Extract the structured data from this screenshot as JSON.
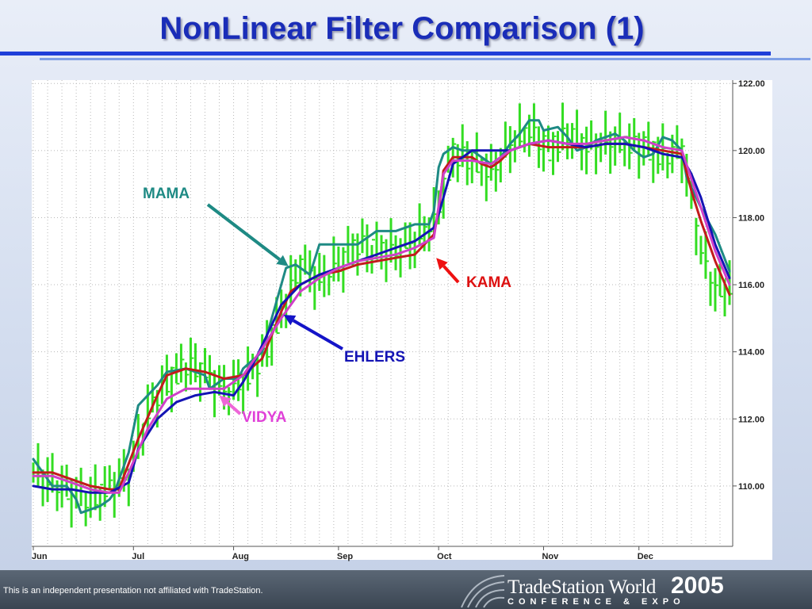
{
  "slide": {
    "title": "NonLinear Filter Comparison (1)",
    "disclaimer": "This is an independent presentation not affiliated with TradeStation.",
    "logo_name": "TradeStation World",
    "logo_year": "2005",
    "logo_subtitle": "CONFERENCE & EXPO",
    "accent_color": "#1a2db8"
  },
  "chart_data": {
    "type": "line",
    "x_unit": "trading days (Jun–Dec)",
    "ylim": [
      108.2,
      122.1
    ],
    "yticks": [
      110,
      112,
      114,
      116,
      118,
      120,
      122
    ],
    "ytick_labels": [
      "110.00",
      "112.00",
      "114.00",
      "116.00",
      "118.00",
      "120.00",
      "122.00"
    ],
    "months": [
      {
        "label": "Jun",
        "day": 0
      },
      {
        "label": "Jul",
        "day": 21
      },
      {
        "label": "Aug",
        "day": 42
      },
      {
        "label": "Sep",
        "day": 64
      },
      {
        "label": "Oct",
        "day": 85
      },
      {
        "label": "Nov",
        "day": 107
      },
      {
        "label": "Dec",
        "day": 127
      }
    ],
    "last_day": 146,
    "grid": true,
    "bar_color": "#33dd22",
    "price_bars": {
      "x": [
        0,
        4,
        8,
        12,
        16,
        20,
        24,
        28,
        32,
        36,
        40,
        44,
        48,
        52,
        56,
        60,
        64,
        68,
        72,
        76,
        80,
        84,
        88,
        92,
        96,
        100,
        104,
        108,
        112,
        116,
        120,
        124,
        128,
        132,
        136,
        140,
        143,
        146
      ],
      "close": [
        110.4,
        110.1,
        109.8,
        109.6,
        110.0,
        110.3,
        112.2,
        113.1,
        113.6,
        113.4,
        112.8,
        113.1,
        113.8,
        115.2,
        116.6,
        116.1,
        116.6,
        117.2,
        117.0,
        117.0,
        117.3,
        117.9,
        119.9,
        119.7,
        119.3,
        120.2,
        120.6,
        120.0,
        120.5,
        120.1,
        120.2,
        120.2,
        120.1,
        119.8,
        120.0,
        117.0,
        115.8,
        116.0
      ]
    },
    "series": [
      {
        "name": "MAMA",
        "color": "#1e8a84",
        "x": [
          0,
          4,
          7,
          9,
          10,
          14,
          16,
          17,
          20,
          22,
          26,
          28,
          32,
          36,
          37,
          40,
          43,
          44,
          48,
          52,
          53,
          55,
          56,
          58,
          60,
          64,
          65,
          68,
          72,
          76,
          80,
          83,
          84,
          85,
          86,
          88,
          90,
          92,
          95,
          96,
          98,
          100,
          102,
          104,
          106,
          107,
          110,
          112,
          114,
          116,
          118,
          120,
          122,
          124,
          126,
          128,
          130,
          132,
          134,
          136,
          137,
          140,
          143,
          146
        ],
        "values": [
          110.8,
          110.0,
          110.0,
          109.6,
          109.2,
          109.4,
          109.6,
          109.8,
          111.0,
          112.4,
          113.0,
          113.4,
          113.5,
          113.3,
          112.9,
          113.2,
          113.2,
          113.5,
          114.0,
          116.0,
          116.5,
          116.6,
          116.5,
          116.3,
          117.2,
          117.2,
          117.2,
          117.2,
          117.6,
          117.6,
          117.8,
          117.8,
          118.2,
          119.5,
          119.9,
          120.1,
          120.0,
          120.0,
          119.7,
          119.6,
          119.8,
          120.2,
          120.5,
          120.9,
          120.9,
          120.6,
          120.7,
          120.4,
          120.0,
          120.1,
          120.3,
          120.4,
          120.5,
          120.3,
          120.0,
          119.8,
          119.9,
          120.4,
          120.3,
          120.0,
          119.2,
          118.3,
          117.5,
          116.4
        ]
      },
      {
        "name": "KAMA",
        "color": "#c21b1b",
        "x": [
          0,
          4,
          8,
          12,
          16,
          18,
          19,
          22,
          26,
          28,
          32,
          36,
          40,
          44,
          48,
          52,
          54,
          56,
          60,
          64,
          68,
          72,
          76,
          80,
          84,
          85,
          86,
          88,
          92,
          94,
          96,
          98,
          100,
          104,
          108,
          112,
          116,
          120,
          124,
          128,
          132,
          136,
          138,
          140,
          143,
          146
        ],
        "values": [
          110.4,
          110.4,
          110.2,
          110.0,
          109.9,
          109.9,
          110.3,
          111.4,
          112.7,
          113.3,
          113.5,
          113.4,
          113.2,
          113.3,
          113.8,
          115.2,
          115.8,
          116.0,
          116.3,
          116.4,
          116.6,
          116.7,
          116.8,
          116.9,
          117.5,
          118.2,
          119.4,
          119.8,
          119.8,
          119.6,
          119.5,
          119.7,
          120.0,
          120.2,
          120.1,
          120.1,
          120.1,
          120.2,
          120.2,
          120.1,
          120.0,
          119.9,
          118.8,
          117.9,
          116.7,
          115.7
        ]
      },
      {
        "name": "EHLERS",
        "color": "#1414b4",
        "x": [
          0,
          4,
          8,
          12,
          16,
          20,
          22,
          26,
          30,
          34,
          38,
          42,
          44,
          46,
          48,
          52,
          56,
          60,
          64,
          68,
          72,
          76,
          80,
          84,
          85,
          86,
          88,
          92,
          96,
          100,
          104,
          108,
          112,
          116,
          120,
          124,
          128,
          132,
          136,
          138,
          140,
          143,
          146
        ],
        "values": [
          110.0,
          109.9,
          109.9,
          109.8,
          109.8,
          110.1,
          111.1,
          112.0,
          112.5,
          112.7,
          112.8,
          112.7,
          113.1,
          113.6,
          114.2,
          115.4,
          116.0,
          116.3,
          116.5,
          116.7,
          116.9,
          117.1,
          117.3,
          117.7,
          118.1,
          118.6,
          119.6,
          120.0,
          120.0,
          120.0,
          120.2,
          120.3,
          120.2,
          120.1,
          120.2,
          120.2,
          120.1,
          119.9,
          119.8,
          119.3,
          118.6,
          117.2,
          116.2
        ]
      },
      {
        "name": "VIDYA",
        "color": "#d040c8",
        "x": [
          0,
          4,
          8,
          12,
          16,
          18,
          20,
          24,
          28,
          32,
          36,
          40,
          44,
          48,
          52,
          56,
          60,
          64,
          68,
          72,
          76,
          80,
          84,
          86,
          88,
          92,
          96,
          100,
          104,
          108,
          112,
          116,
          120,
          124,
          128,
          132,
          136,
          140,
          143,
          146
        ],
        "values": [
          110.3,
          110.3,
          110.1,
          109.9,
          109.8,
          109.8,
          110.4,
          111.7,
          112.6,
          112.9,
          112.9,
          112.9,
          113.3,
          114.1,
          115.0,
          115.8,
          116.2,
          116.5,
          116.7,
          116.8,
          116.9,
          117.1,
          117.4,
          119.3,
          119.7,
          119.7,
          119.6,
          120.0,
          120.2,
          120.3,
          120.2,
          120.2,
          120.3,
          120.4,
          120.3,
          120.1,
          120.0,
          118.3,
          117.0,
          116.0
        ]
      }
    ],
    "annotations": [
      {
        "text": "MAMA",
        "color": "#1e8a84",
        "arrow_color": "#1e8a84",
        "target_day": 53.5,
        "target_value": 116.55
      },
      {
        "text": "KAMA",
        "color": "#dd1111",
        "arrow_color": "#ee1111",
        "target_day": 84.5,
        "target_value": 116.8
      },
      {
        "text": "EHLERS",
        "color": "#1414b4",
        "arrow_color": "#1414c8",
        "target_day": 52.5,
        "target_value": 115.1
      },
      {
        "text": "VIDYA",
        "color": "#e040d8",
        "arrow_color": "#ee66d8",
        "target_day": 39,
        "target_value": 112.7
      }
    ]
  }
}
